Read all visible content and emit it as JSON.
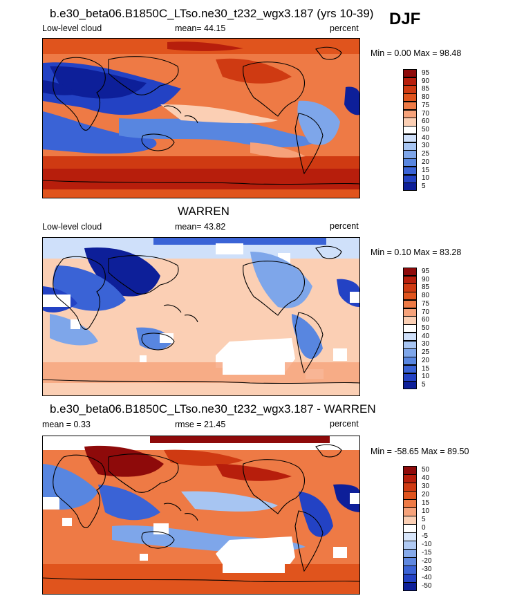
{
  "season": "DJF",
  "panels": [
    {
      "id": "model",
      "title": "b.e30_beta06.B1850C_LTso.ne30_t232_wgx3.187 (yrs 10-39)",
      "left": "Low-level cloud",
      "center": "mean=  44.15",
      "right": "percent",
      "minmax": "Min =   0.00 Max =  98.48",
      "levels": [
        "95",
        "90",
        "85",
        "80",
        "75",
        "70",
        "60",
        "50",
        "40",
        "30",
        "25",
        "20",
        "15",
        "10",
        "5"
      ],
      "colors": [
        "#8e0a0a",
        "#b71e0c",
        "#cf3a12",
        "#e0541d",
        "#ee7a45",
        "#f6a27a",
        "#fbcfb4",
        "#ffffff",
        "#cfe0fa",
        "#a7c5f2",
        "#7ea6ea",
        "#5886e0",
        "#3a63d6",
        "#2342c4",
        "#0d1f99"
      ]
    },
    {
      "id": "obs",
      "title": "WARREN",
      "left": "Low-level cloud",
      "center": "mean=  43.82",
      "right": "percent",
      "minmax": "Min =   0.10 Max =  83.28",
      "levels": [
        "95",
        "90",
        "85",
        "80",
        "75",
        "70",
        "60",
        "50",
        "40",
        "30",
        "25",
        "20",
        "15",
        "10",
        "5"
      ],
      "colors": [
        "#8e0a0a",
        "#b71e0c",
        "#cf3a12",
        "#e0541d",
        "#ee7a45",
        "#f6a27a",
        "#fbcfb4",
        "#ffffff",
        "#cfe0fa",
        "#a7c5f2",
        "#7ea6ea",
        "#5886e0",
        "#3a63d6",
        "#2342c4",
        "#0d1f99"
      ]
    },
    {
      "id": "diff",
      "title": "b.e30_beta06.B1850C_LTso.ne30_t232_wgx3.187 - WARREN",
      "left": "mean =   0.33",
      "center": "rmse =  21.45",
      "right": "percent",
      "minmax": "Min = -58.65 Max =  89.50",
      "levels": [
        "50",
        "40",
        "30",
        "20",
        "15",
        "10",
        "5",
        "0",
        "-5",
        "-10",
        "-15",
        "-20",
        "-30",
        "-40",
        "-50"
      ],
      "colors": [
        "#8e0a0a",
        "#b71e0c",
        "#cf3a12",
        "#e0541d",
        "#ee7a45",
        "#f6a27a",
        "#fbcfb4",
        "#ffffff",
        "#d8e6fb",
        "#b0caf3",
        "#86aaea",
        "#5f88e0",
        "#3b63d6",
        "#2342c4",
        "#0d1f99"
      ]
    }
  ]
}
